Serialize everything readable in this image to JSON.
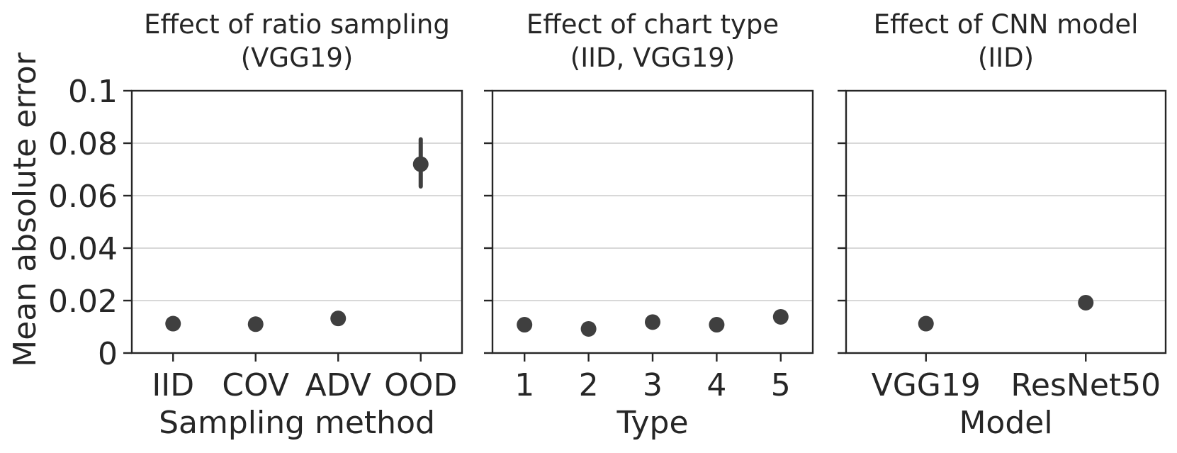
{
  "y_axis": {
    "label": "Mean absolute error",
    "ticks": [
      0,
      0.02,
      0.04,
      0.06,
      0.08,
      0.1
    ],
    "tick_labels": [
      "0",
      "0.02",
      "0.04",
      "0.06",
      "0.08",
      "0.1"
    ]
  },
  "chart_data": [
    {
      "type": "scatter",
      "title": "Effect of ratio sampling",
      "subtitle": "(VGG19)",
      "xlabel": "Sampling method",
      "ylabel": "Mean absolute error",
      "ylim": [
        0,
        0.1
      ],
      "grid": true,
      "categories": [
        "IID",
        "COV",
        "ADV",
        "OOD"
      ],
      "values": [
        0.0112,
        0.011,
        0.0132,
        0.072
      ],
      "error_low": [
        0.0112,
        0.011,
        0.0132,
        0.0635
      ],
      "error_high": [
        0.0112,
        0.011,
        0.0132,
        0.0815
      ]
    },
    {
      "type": "scatter",
      "title": "Effect of chart type",
      "subtitle": "(IID, VGG19)",
      "xlabel": "Type",
      "ylabel": "",
      "ylim": [
        0,
        0.1
      ],
      "grid": true,
      "categories": [
        "1",
        "2",
        "3",
        "4",
        "5"
      ],
      "values": [
        0.0108,
        0.0092,
        0.0118,
        0.0108,
        0.0138
      ],
      "error_low": [
        0.0108,
        0.0092,
        0.0118,
        0.0108,
        0.0138
      ],
      "error_high": [
        0.0108,
        0.0092,
        0.0118,
        0.0108,
        0.0138
      ]
    },
    {
      "type": "scatter",
      "title": "Effect of CNN model",
      "subtitle": "(IID)",
      "xlabel": "Model",
      "ylabel": "",
      "ylim": [
        0,
        0.1
      ],
      "grid": true,
      "categories": [
        "VGG19",
        "ResNet50"
      ],
      "values": [
        0.0112,
        0.0192
      ],
      "error_low": [
        0.0112,
        0.0192
      ],
      "error_high": [
        0.0112,
        0.0192
      ]
    }
  ],
  "colors": {
    "marker": "#3f3f3f",
    "axis": "#262626",
    "grid": "#cccccc",
    "text": "#262626"
  }
}
